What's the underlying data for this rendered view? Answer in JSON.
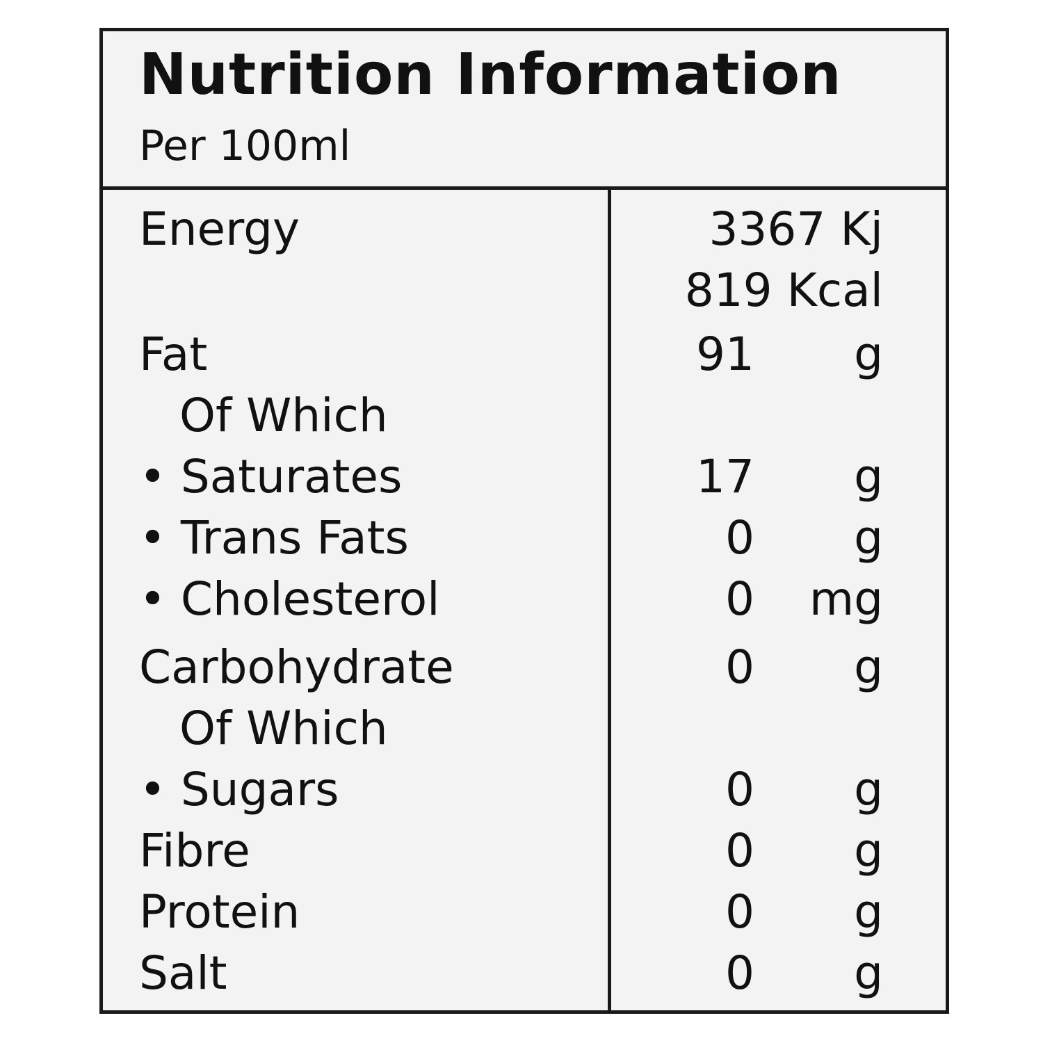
{
  "title": "Nutrition Information",
  "serving": "Per 100ml",
  "energy": {
    "label": "Energy",
    "kj": "3367 Kj",
    "kcal": "819 Kcal"
  },
  "rows": [
    {
      "label": "Fat",
      "value": "91",
      "unit": "g"
    },
    {
      "label": "Of Which",
      "value": "",
      "unit": ""
    },
    {
      "label": "• Saturates",
      "value": "17",
      "unit": "g"
    },
    {
      "label": "• Trans Fats",
      "value": "0",
      "unit": "g"
    },
    {
      "label": "• Cholesterol",
      "value": "0",
      "unit": "mg"
    },
    {
      "label": "Carbohydrate",
      "value": "0",
      "unit": "g"
    },
    {
      "label": "Of Which",
      "value": "",
      "unit": ""
    },
    {
      "label": "• Sugars",
      "value": "0",
      "unit": "g"
    },
    {
      "label": "Fibre",
      "value": "0",
      "unit": "g"
    },
    {
      "label": "Protein",
      "value": "0",
      "unit": "g"
    },
    {
      "label": "Salt",
      "value": "0",
      "unit": "g"
    }
  ]
}
